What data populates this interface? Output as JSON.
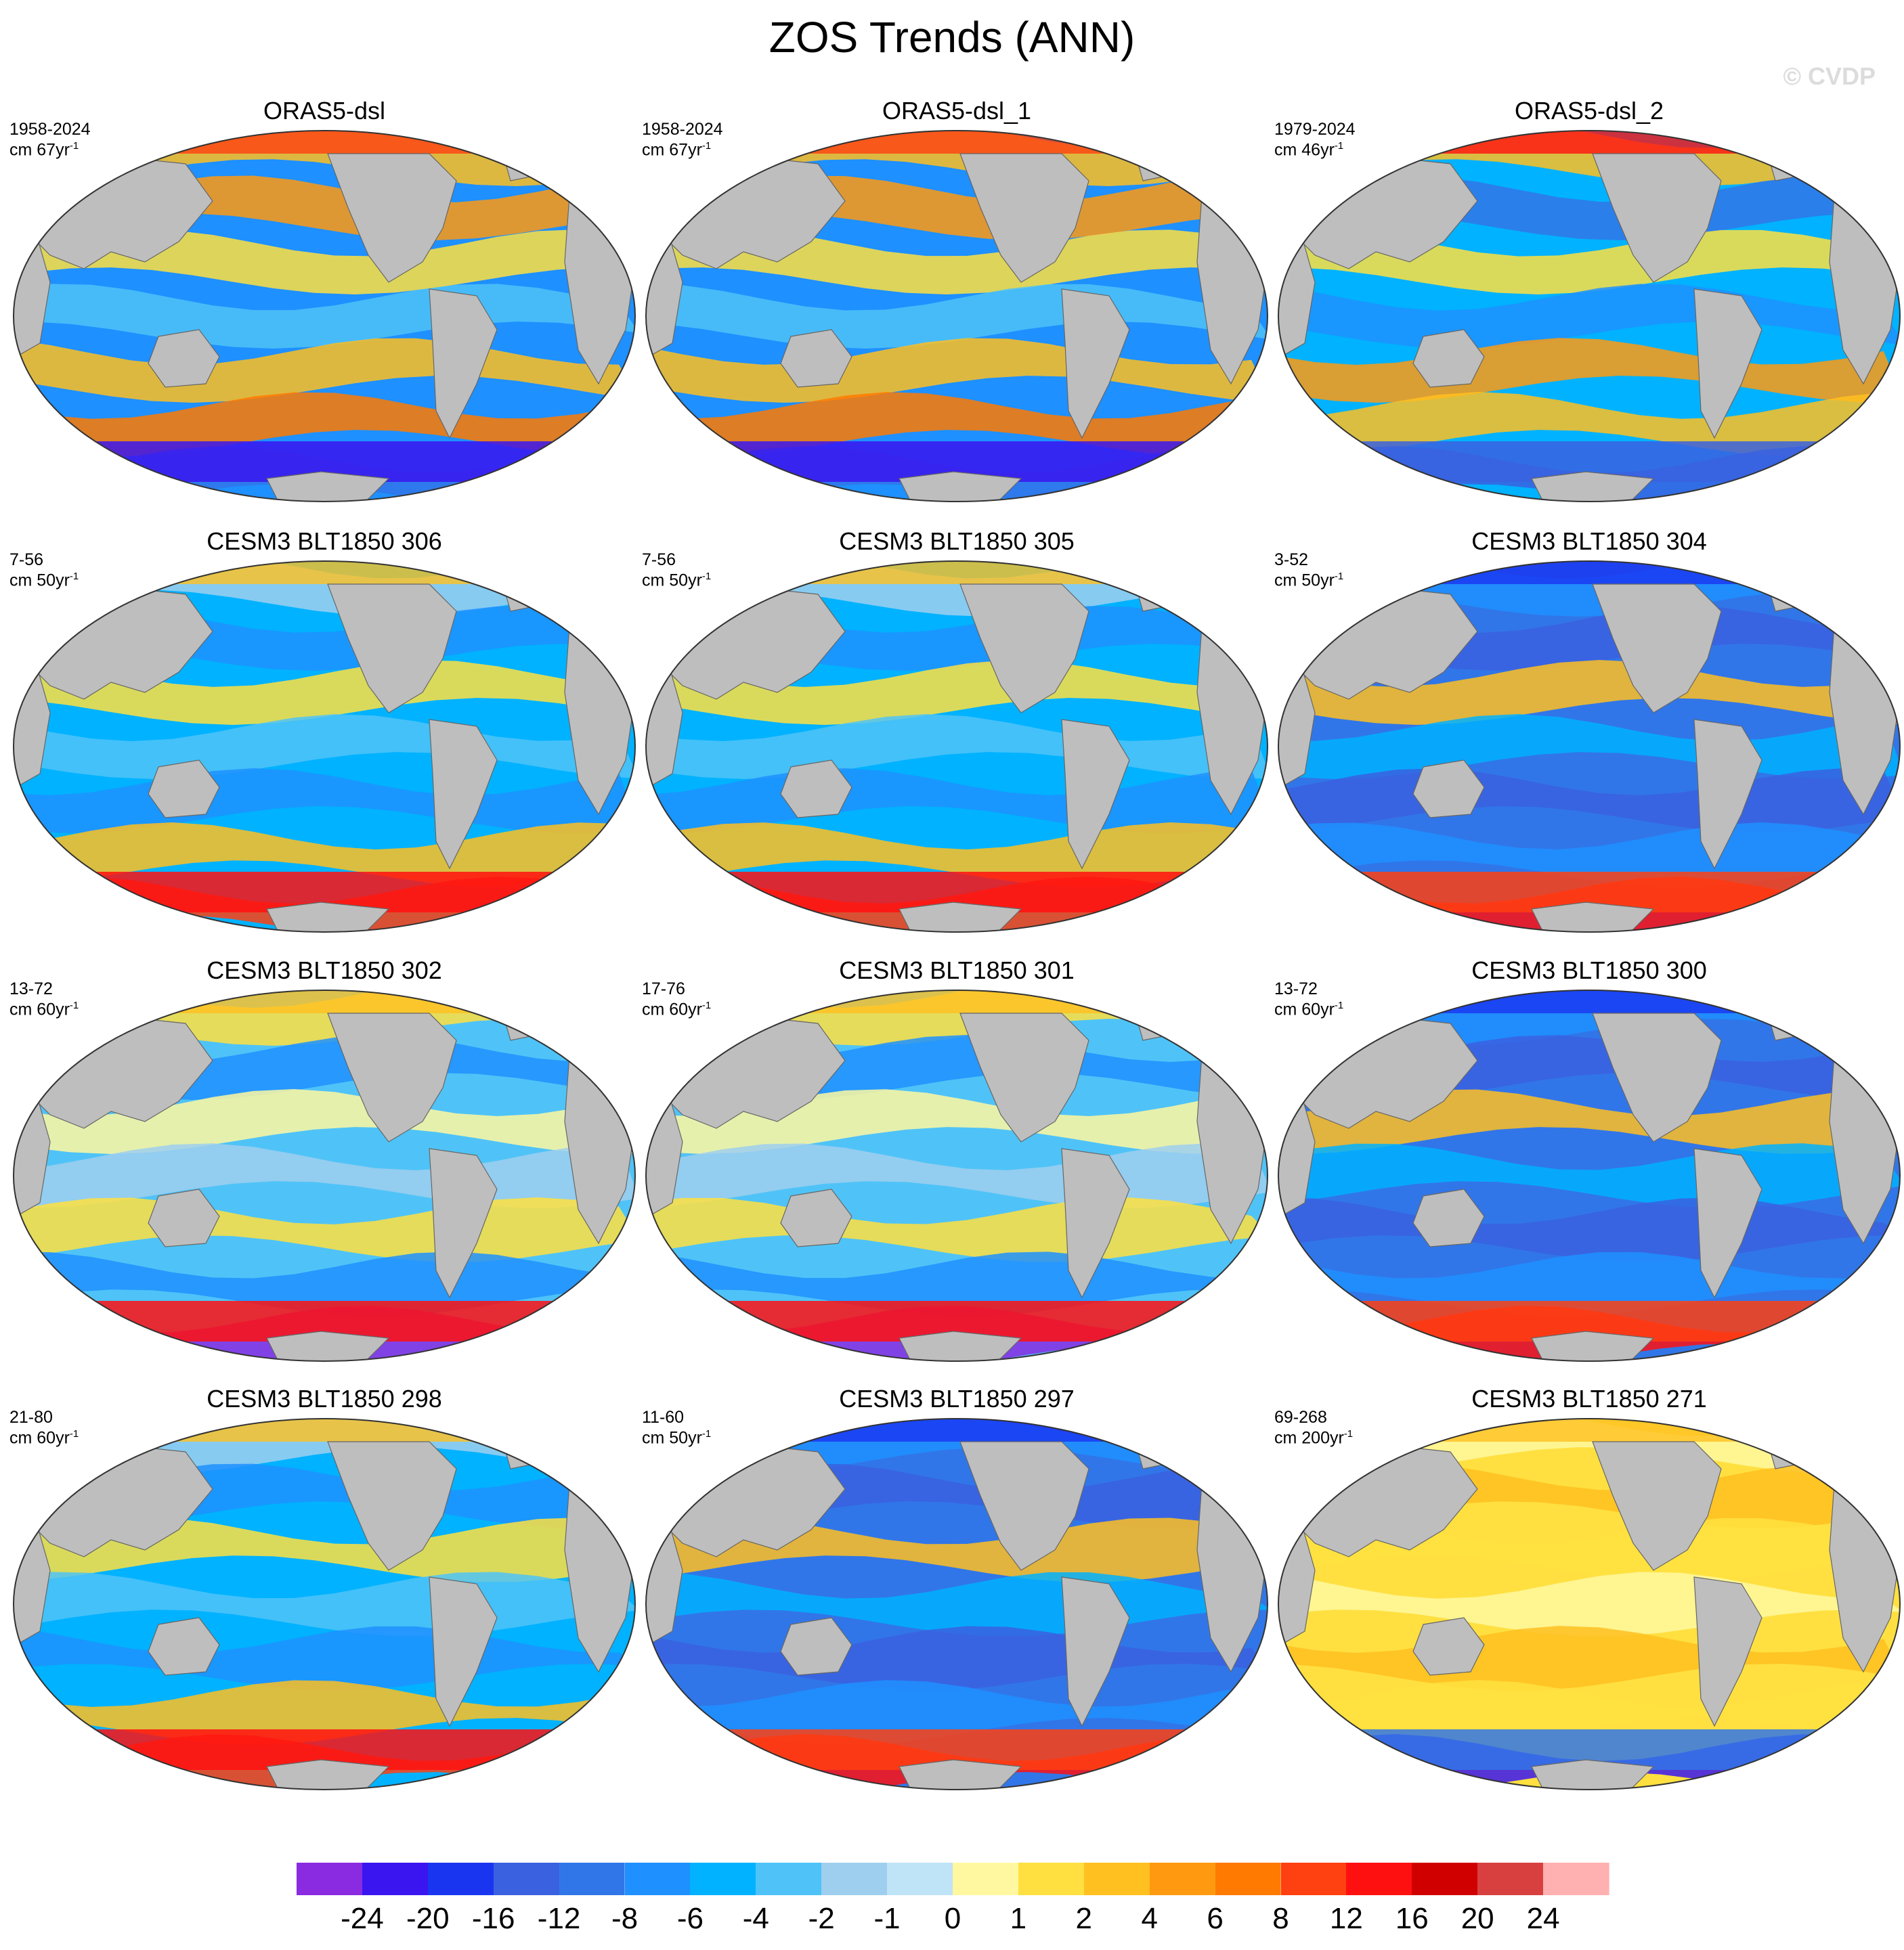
{
  "figure": {
    "title": "ZOS Trends (ANN)",
    "watermark": "© CVDP"
  },
  "panels": [
    {
      "title": "ORAS5-dsl",
      "period": "1958-2024",
      "unit_prefix": "cm 67yr",
      "unit_exp": "-1",
      "pattern": "warm-obs"
    },
    {
      "title": "ORAS5-dsl_1",
      "period": "1958-2024",
      "unit_prefix": "cm 67yr",
      "unit_exp": "-1",
      "pattern": "warm-obs"
    },
    {
      "title": "ORAS5-dsl_2",
      "period": "1979-2024",
      "unit_prefix": "cm 46yr",
      "unit_exp": "-1",
      "pattern": "mixed-obs"
    },
    {
      "title": "CESM3 BLT1850 306",
      "period": "7-56",
      "unit_prefix": "cm 50yr",
      "unit_exp": "-1",
      "pattern": "cool-model"
    },
    {
      "title": "CESM3 BLT1850 305",
      "period": "7-56",
      "unit_prefix": "cm 50yr",
      "unit_exp": "-1",
      "pattern": "cool-model"
    },
    {
      "title": "CESM3 BLT1850 304",
      "period": "3-52",
      "unit_prefix": "cm 50yr",
      "unit_exp": "-1",
      "pattern": "deep-cool"
    },
    {
      "title": "CESM3 BLT1850 302",
      "period": "13-72",
      "unit_prefix": "cm 60yr",
      "unit_exp": "-1",
      "pattern": "mixed-model"
    },
    {
      "title": "CESM3 BLT1850 301",
      "period": "17-76",
      "unit_prefix": "cm 60yr",
      "unit_exp": "-1",
      "pattern": "mixed-model"
    },
    {
      "title": "CESM3 BLT1850 300",
      "period": "13-72",
      "unit_prefix": "cm 60yr",
      "unit_exp": "-1",
      "pattern": "deep-cool"
    },
    {
      "title": "CESM3 BLT1850 298",
      "period": "21-80",
      "unit_prefix": "cm 60yr",
      "unit_exp": "-1",
      "pattern": "cool-model"
    },
    {
      "title": "CESM3 BLT1850 297",
      "period": "11-60",
      "unit_prefix": "cm 50yr",
      "unit_exp": "-1",
      "pattern": "deep-cool"
    },
    {
      "title": "CESM3 BLT1850 271",
      "period": "69-268",
      "unit_prefix": "cm 200yr",
      "unit_exp": "-1",
      "pattern": "warm-model"
    }
  ],
  "colorbar": {
    "colors": [
      "#8a2be2",
      "#3a15f0",
      "#1a35f0",
      "#3a62e0",
      "#3176e8",
      "#1e90ff",
      "#00b2ff",
      "#4fc3f7",
      "#9fcfee",
      "#bfe3f7",
      "#fff8a0",
      "#ffe040",
      "#ffc020",
      "#ff9a10",
      "#ff7a00",
      "#ff4010",
      "#ff1010",
      "#d00000",
      "#d84040",
      "#ffb0b0"
    ],
    "labels": [
      "-24",
      "-20",
      "-16",
      "-12",
      "-8",
      "-6",
      "-4",
      "-2",
      "-1",
      "0",
      "1",
      "2",
      "4",
      "6",
      "8",
      "12",
      "16",
      "20",
      "24"
    ]
  }
}
